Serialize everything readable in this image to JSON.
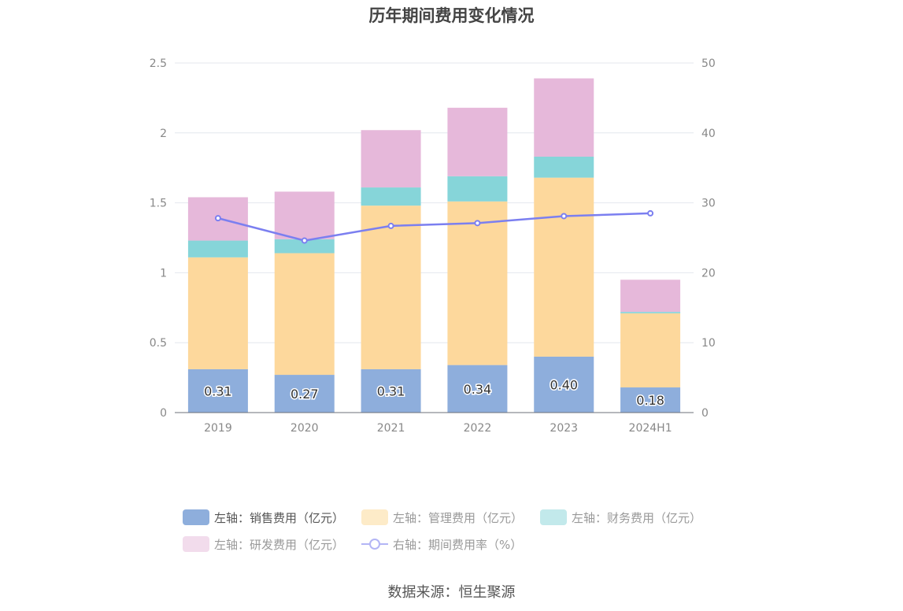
{
  "title": "历年期间费用变化情况",
  "source": "数据来源：恒生聚源",
  "chart_data": {
    "type": "bar",
    "stacked": true,
    "categories": [
      "2019",
      "2020",
      "2021",
      "2022",
      "2023",
      "2024H1"
    ],
    "left_axis": {
      "min": 0,
      "max": 2.5,
      "ticks": [
        "0",
        "0.5",
        "1",
        "1.5",
        "2",
        "2.5"
      ]
    },
    "right_axis": {
      "min": 0,
      "max": 50,
      "ticks": [
        "0",
        "10",
        "20",
        "30",
        "40",
        "50"
      ]
    },
    "series": [
      {
        "name": "左轴：销售费用（亿元）",
        "axis": "left",
        "kind": "bar",
        "color": "#8eaedc",
        "values": [
          0.31,
          0.27,
          0.31,
          0.34,
          0.4,
          0.18
        ],
        "labels": [
          "0.31",
          "0.27",
          "0.31",
          "0.34",
          "0.40",
          "0.18"
        ]
      },
      {
        "name": "左轴：管理费用（亿元）",
        "axis": "left",
        "kind": "bar",
        "color": "#fdd89c",
        "values": [
          0.8,
          0.87,
          1.17,
          1.17,
          1.28,
          0.53
        ]
      },
      {
        "name": "左轴：财务费用（亿元）",
        "axis": "left",
        "kind": "bar",
        "color": "#86d5d9",
        "values": [
          0.12,
          0.1,
          0.13,
          0.18,
          0.15,
          0.01
        ]
      },
      {
        "name": "左轴：研发费用（亿元）",
        "axis": "left",
        "kind": "bar",
        "color": "#e6b8da",
        "values": [
          0.31,
          0.34,
          0.41,
          0.49,
          0.56,
          0.23
        ]
      },
      {
        "name": "右轴：期间费用率（%）",
        "axis": "right",
        "kind": "line",
        "color": "#7b7ff0",
        "values": [
          27.8,
          24.6,
          26.7,
          27.1,
          28.1,
          28.5
        ]
      }
    ],
    "legend_position": "bottom",
    "grid": true
  }
}
